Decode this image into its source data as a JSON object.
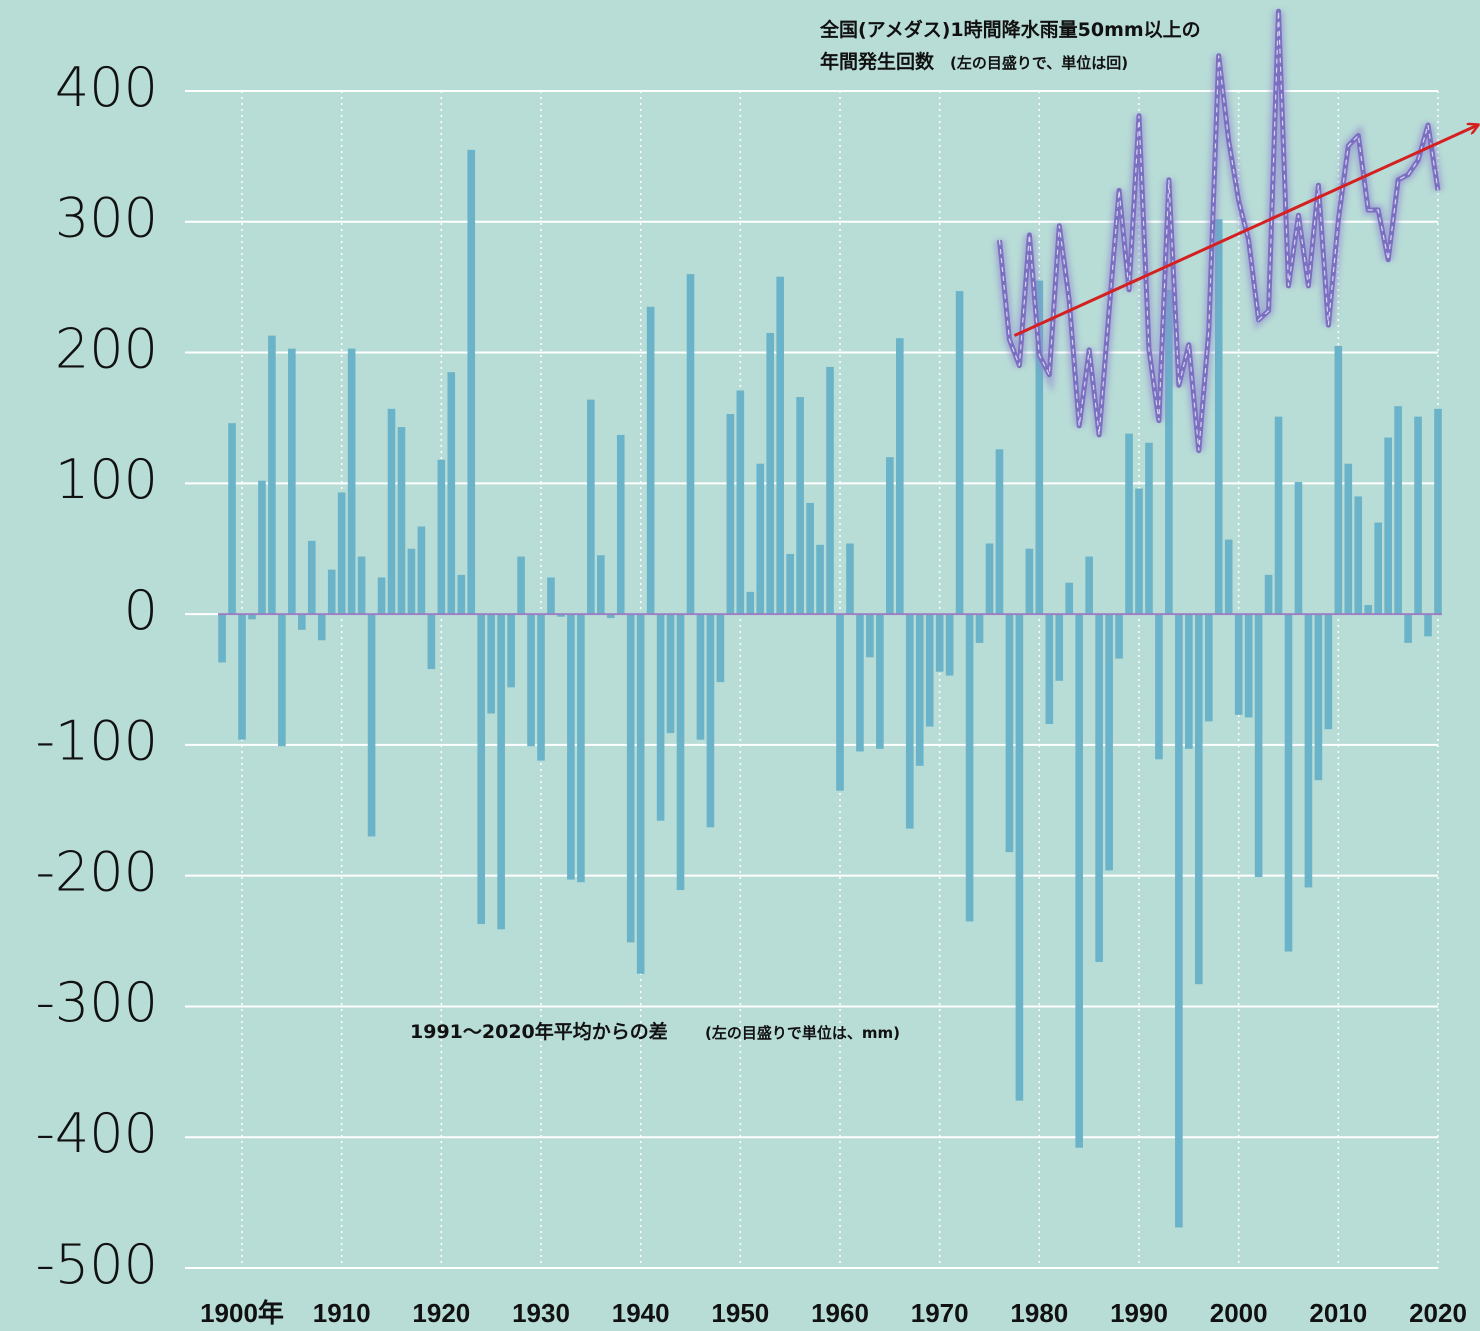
{
  "chart_data": {
    "type": "bar",
    "xlim": [
      1900,
      2020
    ],
    "ylim": [
      -500,
      400
    ],
    "yticks": [
      400,
      300,
      200,
      100,
      0,
      -100,
      -200,
      -300,
      -400,
      -500
    ],
    "xticks": [
      {
        "value": 1900,
        "label": "1900年"
      },
      1910,
      1920,
      1930,
      1940,
      1950,
      1960,
      1970,
      1980,
      1990,
      2000,
      2010,
      2020
    ],
    "grid": true,
    "series": [
      {
        "type": "bar",
        "name": "1991～2020年平均からの差",
        "note": "(左の目盛りで単位は、mm)",
        "color": "#6ab3c8",
        "x": [
          1898,
          1899,
          1900,
          1901,
          1902,
          1903,
          1904,
          1905,
          1906,
          1907,
          1908,
          1909,
          1910,
          1911,
          1912,
          1913,
          1914,
          1915,
          1916,
          1917,
          1918,
          1919,
          1920,
          1921,
          1922,
          1923,
          1924,
          1925,
          1926,
          1927,
          1928,
          1929,
          1930,
          1931,
          1932,
          1933,
          1934,
          1935,
          1936,
          1937,
          1938,
          1939,
          1940,
          1941,
          1942,
          1943,
          1944,
          1945,
          1946,
          1947,
          1948,
          1949,
          1950,
          1951,
          1952,
          1953,
          1954,
          1955,
          1956,
          1957,
          1958,
          1959,
          1960,
          1961,
          1962,
          1963,
          1964,
          1965,
          1966,
          1967,
          1968,
          1969,
          1970,
          1971,
          1972,
          1973,
          1974,
          1975,
          1976,
          1977,
          1978,
          1979,
          1980,
          1981,
          1982,
          1983,
          1984,
          1985,
          1986,
          1987,
          1988,
          1989,
          1990,
          1991,
          1992,
          1993,
          1994,
          1995,
          1996,
          1997,
          1998,
          1999,
          2000,
          2001,
          2002,
          2003,
          2004,
          2005,
          2006,
          2007,
          2008,
          2009,
          2010,
          2011,
          2012,
          2013,
          2014,
          2015,
          2016,
          2017,
          2018,
          2019,
          2020
        ],
        "values": [
          -37,
          146,
          -96,
          -4,
          102,
          213,
          -101,
          203,
          -12,
          56,
          -20,
          34,
          93,
          203,
          44,
          -170,
          28,
          157,
          143,
          50,
          67,
          -42,
          118,
          185,
          30,
          355,
          -237,
          -76,
          -241,
          -56,
          44,
          -101,
          -112,
          28,
          -2,
          -203,
          -205,
          164,
          45,
          -3,
          137,
          -251,
          -275,
          235,
          -158,
          -91,
          -211,
          260,
          -96,
          -163,
          -52,
          153,
          171,
          17,
          115,
          215,
          258,
          46,
          166,
          85,
          53,
          189,
          -135,
          54,
          -105,
          -33,
          -103,
          120,
          211,
          -164,
          -116,
          -86,
          -44,
          -47,
          247,
          -235,
          -22,
          54,
          126,
          -182,
          -372,
          50,
          255,
          -84,
          -51,
          24,
          -408,
          44,
          -266,
          -196,
          -34,
          138,
          96,
          131,
          -111,
          248,
          -469,
          -103,
          -283,
          -82,
          302,
          57,
          -77,
          -79,
          -201,
          30,
          151,
          -258,
          101,
          -209,
          -127,
          -88,
          205,
          115,
          90,
          7,
          70,
          135,
          159,
          -22,
          151,
          -17,
          157
        ]
      },
      {
        "type": "line",
        "name": "全国(アメダス)1時間降水雨量50mm以上の",
        "name2": "年間発生回数",
        "note": "(左の目盛りで、単位は回)",
        "color": "#7b6fc0",
        "x": [
          1976,
          1977,
          1978,
          1979,
          1980,
          1981,
          1982,
          1983,
          1984,
          1985,
          1986,
          1987,
          1988,
          1989,
          1990,
          1991,
          1992,
          1993,
          1994,
          1995,
          1996,
          1997,
          1998,
          1999,
          2000,
          2001,
          2002,
          2003,
          2004,
          2005,
          2006,
          2007,
          2008,
          2009,
          2010,
          2011,
          2012,
          2013,
          2014,
          2015,
          2016,
          2017,
          2018,
          2019,
          2020
        ],
        "values": [
          286,
          210,
          190,
          290,
          198,
          183,
          297,
          240,
          144,
          202,
          137,
          232,
          324,
          248,
          381,
          202,
          148,
          332,
          175,
          206,
          125,
          217,
          427,
          362,
          316,
          286,
          225,
          232,
          461,
          251,
          305,
          251,
          328,
          221,
          301,
          358,
          366,
          309,
          309,
          271,
          332,
          336,
          347,
          374,
          324
        ]
      }
    ],
    "trend": {
      "x": [
        1977.5,
        2024
      ],
      "values": [
        213,
        374
      ],
      "color": "#d42020"
    }
  }
}
